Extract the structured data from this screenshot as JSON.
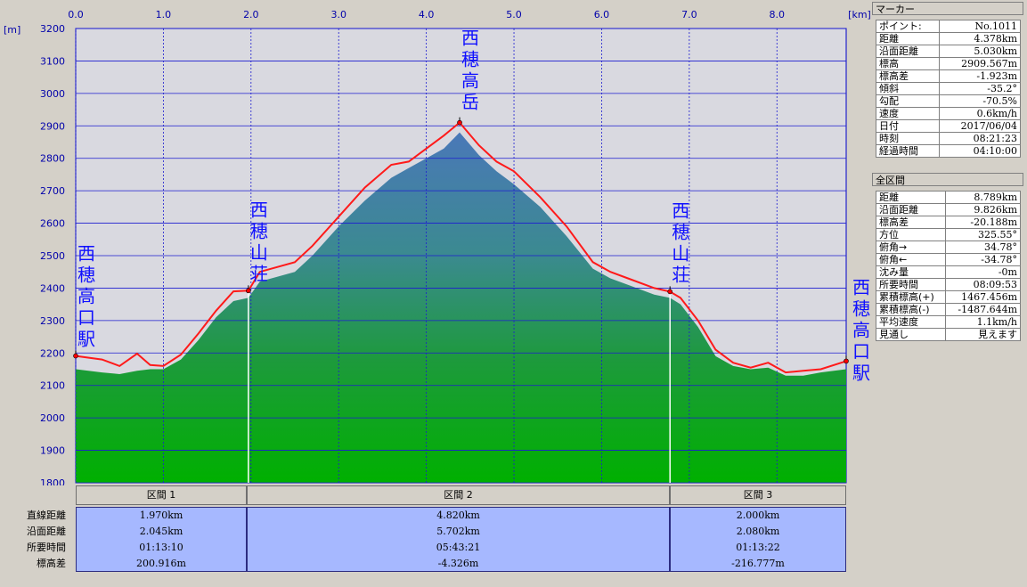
{
  "chart_data": {
    "type": "area",
    "x_unit_label": "[km]",
    "y_unit_label": "[m]",
    "xlim": [
      0,
      8.79
    ],
    "ylim": [
      1800,
      3200
    ],
    "x_ticks": [
      "0.0",
      "1.0",
      "2.0",
      "3.0",
      "4.0",
      "5.0",
      "6.0",
      "7.0",
      "8.0"
    ],
    "y_ticks": [
      "3200",
      "3100",
      "3000",
      "2900",
      "2800",
      "2700",
      "2600",
      "2500",
      "2400",
      "2300",
      "2200",
      "2100",
      "2000",
      "1900",
      "1800"
    ],
    "grid": true,
    "series": [
      {
        "role": "route-profile",
        "color": "#ff1a1a",
        "x": [
          0,
          0.3,
          0.5,
          0.7,
          0.85,
          1.0,
          1.2,
          1.4,
          1.6,
          1.8,
          1.97,
          2.1,
          2.5,
          2.7,
          3.0,
          3.3,
          3.6,
          3.8,
          4.0,
          4.2,
          4.38,
          4.6,
          4.8,
          5.0,
          5.3,
          5.6,
          5.9,
          6.1,
          6.3,
          6.6,
          6.78,
          6.9,
          7.1,
          7.3,
          7.5,
          7.7,
          7.9,
          8.1,
          8.3,
          8.5,
          8.79
        ],
        "y": [
          2191,
          2180,
          2160,
          2198,
          2163,
          2160,
          2195,
          2260,
          2330,
          2390,
          2392,
          2450,
          2480,
          2530,
          2620,
          2710,
          2780,
          2790,
          2830,
          2870,
          2910,
          2840,
          2790,
          2760,
          2680,
          2590,
          2480,
          2450,
          2430,
          2400,
          2389,
          2370,
          2300,
          2210,
          2170,
          2155,
          2170,
          2140,
          2145,
          2150,
          2175
        ]
      },
      {
        "role": "terrain",
        "color": "#1a9e2a",
        "x": [
          0,
          0.3,
          0.5,
          0.7,
          0.85,
          1.0,
          1.2,
          1.4,
          1.6,
          1.8,
          1.97,
          2.1,
          2.5,
          2.7,
          3.0,
          3.3,
          3.6,
          3.8,
          4.0,
          4.2,
          4.38,
          4.6,
          4.8,
          5.0,
          5.3,
          5.6,
          5.9,
          6.1,
          6.3,
          6.6,
          6.78,
          6.9,
          7.1,
          7.3,
          7.5,
          7.7,
          7.9,
          8.1,
          8.3,
          8.5,
          8.79
        ],
        "y": [
          2150,
          2140,
          2135,
          2145,
          2150,
          2150,
          2180,
          2240,
          2310,
          2360,
          2370,
          2420,
          2450,
          2500,
          2590,
          2670,
          2740,
          2770,
          2800,
          2830,
          2880,
          2810,
          2760,
          2720,
          2650,
          2560,
          2460,
          2430,
          2410,
          2380,
          2370,
          2350,
          2280,
          2190,
          2160,
          2150,
          2155,
          2130,
          2130,
          2140,
          2150
        ]
      }
    ],
    "waypoints": [
      {
        "name": "西穂高口駅",
        "x": 0,
        "y": 2191
      },
      {
        "name": "西穂山荘",
        "x": 1.97,
        "y": 2392
      },
      {
        "name": "西穂高岳",
        "x": 4.38,
        "y": 2910
      },
      {
        "name": "西穂山荘",
        "x": 6.78,
        "y": 2389
      },
      {
        "name": "西穂高口駅",
        "x": 8.79,
        "y": 2175
      }
    ]
  },
  "marker_panel": {
    "title": "マーカー",
    "rows": [
      {
        "k": "ポイント:",
        "v": "No.1011"
      },
      {
        "k": "距離",
        "v": "4.378km"
      },
      {
        "k": "沿面距離",
        "v": "5.030km"
      },
      {
        "k": "標高",
        "v": "2909.567m"
      },
      {
        "k": "標高差",
        "v": "-1.923m"
      },
      {
        "k": "傾斜",
        "v": "-35.2°"
      },
      {
        "k": "勾配",
        "v": "-70.5%"
      },
      {
        "k": "速度",
        "v": "0.6km/h"
      },
      {
        "k": "日付",
        "v": "2017/06/04"
      },
      {
        "k": "時刻",
        "v": "08:21:23"
      },
      {
        "k": "経過時間",
        "v": "04:10:00"
      }
    ]
  },
  "total_panel": {
    "title": "全区間",
    "rows": [
      {
        "k": "距離",
        "v": "8.789km"
      },
      {
        "k": "沿面距離",
        "v": "9.826km"
      },
      {
        "k": "標高差",
        "v": "-20.188m"
      },
      {
        "k": "方位",
        "v": "325.55°"
      },
      {
        "k": "俯角→",
        "v": "34.78°"
      },
      {
        "k": "俯角←",
        "v": "-34.78°"
      },
      {
        "k": "沈み量",
        "v": "-0m"
      },
      {
        "k": "所要時間",
        "v": "08:09:53"
      },
      {
        "k": "累積標高(+)",
        "v": "1467.456m"
      },
      {
        "k": "累積標高(-)",
        "v": "-1487.644m"
      },
      {
        "k": "平均速度",
        "v": "1.1km/h"
      },
      {
        "k": "見通し",
        "v": "見えます"
      }
    ]
  },
  "segments": {
    "row_labels": [
      "直線距離",
      "沿面距離",
      "所要時間",
      "標高差"
    ],
    "items": [
      {
        "title": "区間 1",
        "values": [
          "1.970km",
          "2.045km",
          "01:13:10",
          "200.916m"
        ]
      },
      {
        "title": "区間 2",
        "values": [
          "4.820km",
          "5.702km",
          "05:43:21",
          "-4.326m"
        ]
      },
      {
        "title": "区間 3",
        "values": [
          "2.000km",
          "2.080km",
          "01:13:22",
          "-216.777m"
        ]
      }
    ]
  }
}
